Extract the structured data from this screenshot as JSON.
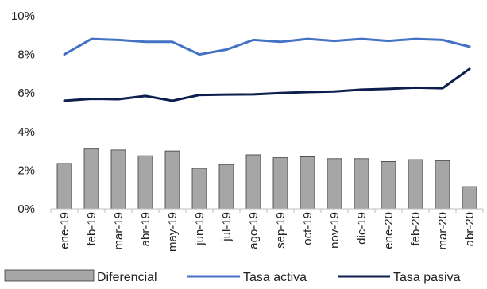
{
  "chart_data": {
    "type": "bar",
    "categories": [
      "ene-19",
      "feb-19",
      "mar-19",
      "abr-19",
      "may-19",
      "jun-19",
      "jul-19",
      "ago-19",
      "sep-19",
      "oct-19",
      "nov-19",
      "dic-19",
      "ene-20",
      "feb-20",
      "mar-20",
      "abr-20"
    ],
    "ylim": [
      0,
      10
    ],
    "yticks": [
      "0%",
      "2%",
      "4%",
      "6%",
      "8%",
      "10%"
    ],
    "grid": false,
    "legend_position": "bottom",
    "series": [
      {
        "name": "Diferencial",
        "kind": "bar",
        "color": "#a6a6a6",
        "values": [
          2.35,
          3.1,
          3.05,
          2.75,
          3.0,
          2.1,
          2.3,
          2.8,
          2.65,
          2.7,
          2.6,
          2.6,
          2.45,
          2.55,
          2.5,
          1.15
        ]
      },
      {
        "name": "Tasa activa",
        "kind": "line",
        "color": "#4472c4",
        "values": [
          8.0,
          8.8,
          8.75,
          8.65,
          8.65,
          8.0,
          8.25,
          8.75,
          8.65,
          8.8,
          8.7,
          8.8,
          8.7,
          8.8,
          8.75,
          8.4
        ]
      },
      {
        "name": "Tasa pasiva",
        "kind": "line",
        "color": "#0d1f4f",
        "values": [
          5.6,
          5.7,
          5.68,
          5.85,
          5.6,
          5.9,
          5.92,
          5.93,
          6.0,
          6.05,
          6.08,
          6.18,
          6.22,
          6.28,
          6.25,
          7.25
        ]
      }
    ]
  }
}
